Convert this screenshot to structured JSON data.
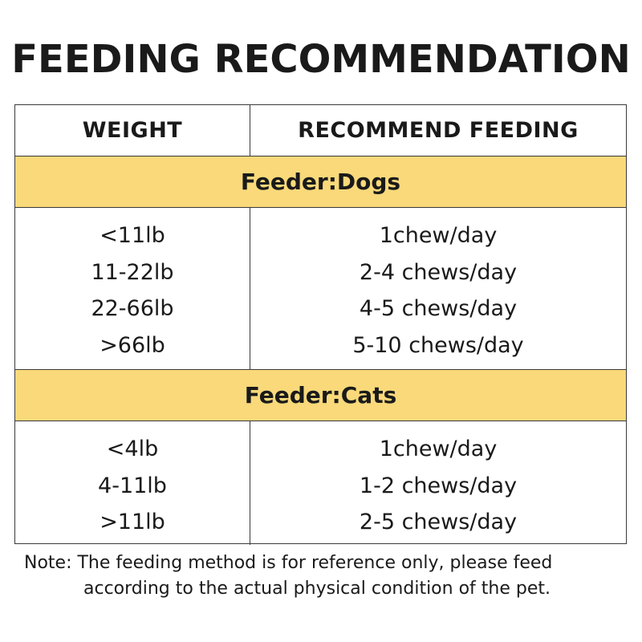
{
  "title": "FEEDING RECOMMENDATION",
  "table": {
    "header": {
      "weight": "WEIGHT",
      "feeding": "RECOMMEND FEEDING"
    },
    "sections": [
      {
        "label": "Feeder:Dogs",
        "rows": [
          {
            "weight": "<11lb",
            "feeding": "1chew/day"
          },
          {
            "weight": "11-22lb",
            "feeding": "2-4 chews/day"
          },
          {
            "weight": "22-66lb",
            "feeding": "4-5 chews/day"
          },
          {
            "weight": ">66lb",
            "feeding": "5-10 chews/day"
          }
        ]
      },
      {
        "label": "Feeder:Cats",
        "rows": [
          {
            "weight": "<4lb",
            "feeding": "1chew/day"
          },
          {
            "weight": "4-11lb",
            "feeding": "1-2 chews/day"
          },
          {
            "weight": ">11lb",
            "feeding": "2-5 chews/day"
          }
        ]
      }
    ]
  },
  "note": {
    "line1": "Note: The feeding method is for reference only, please feed",
    "line2": "according to the actual physical condition of the pet."
  },
  "colors": {
    "section_band": "#f9d97a",
    "text": "#1a1a1a",
    "border": "#3a3a3a"
  }
}
